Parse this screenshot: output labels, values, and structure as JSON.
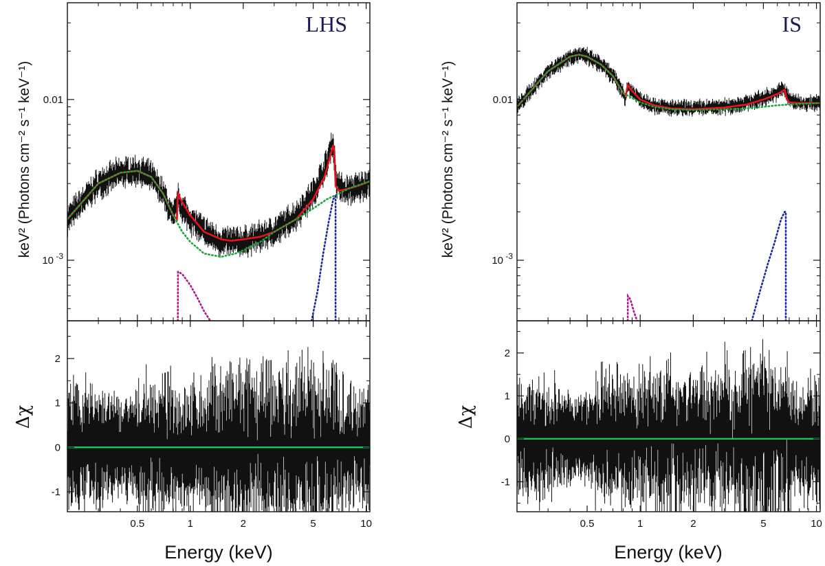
{
  "chart_data": [
    {
      "type": "line",
      "panel_label": "LHS",
      "xlabel": "Energy (keV)",
      "ylabel": "keV² (Photons cm⁻² s⁻¹ keV⁻¹)",
      "residual_label": "Δχ",
      "xscale": "log",
      "yscale": "log",
      "xlim": [
        0.2,
        10.5
      ],
      "ylim": [
        0.00042,
        0.04
      ],
      "residual_ylim": [
        -1.45,
        2.85
      ],
      "x_ticks": [
        {
          "v": 0.5,
          "label": "0.5"
        },
        {
          "v": 1,
          "label": "1"
        },
        {
          "v": 2,
          "label": "2"
        },
        {
          "v": 5,
          "label": "5"
        },
        {
          "v": 10,
          "label": "10"
        }
      ],
      "y_ticks": [
        {
          "v": 0.01,
          "base": "0.01",
          "sup": ""
        },
        {
          "v": 0.001,
          "base": "10",
          "sup": "-3"
        }
      ],
      "residual_ticks": [
        {
          "v": 2,
          "label": "2"
        },
        {
          "v": 1,
          "label": "1"
        },
        {
          "v": 0,
          "label": "0"
        },
        {
          "v": -1,
          "label": "-1"
        }
      ],
      "data_points": {
        "x": [
          0.2,
          0.3,
          0.4,
          0.5,
          0.6,
          0.7,
          0.8,
          0.85,
          0.9,
          1.0,
          1.2,
          1.5,
          2.0,
          2.5,
          3.0,
          4.0,
          5.0,
          6.0,
          6.4,
          6.6,
          6.8,
          7.5,
          9.0,
          10.5
        ],
        "y": [
          0.0018,
          0.003,
          0.0035,
          0.0036,
          0.0033,
          0.0026,
          0.0018,
          0.0024,
          0.0021,
          0.0018,
          0.0015,
          0.0013,
          0.0013,
          0.0014,
          0.0015,
          0.0019,
          0.0026,
          0.004,
          0.0055,
          0.0045,
          0.003,
          0.0027,
          0.0028,
          0.0031
        ],
        "scatter": 0.15
      },
      "series": [
        {
          "name": "",
          "style": "solid",
          "color": "#e8131c",
          "x": [
            0.2,
            0.3,
            0.4,
            0.5,
            0.6,
            0.7,
            0.8,
            0.84,
            0.85,
            0.9,
            1.0,
            1.2,
            1.5,
            1.7,
            2.0,
            2.5,
            3.0,
            4.0,
            5.0,
            5.8,
            6.3,
            6.5,
            6.6,
            6.7,
            7.0,
            8.0,
            9.0,
            10.5
          ],
          "y": [
            0.0018,
            0.003,
            0.0035,
            0.0036,
            0.0033,
            0.0026,
            0.0019,
            0.0018,
            0.0026,
            0.0023,
            0.0019,
            0.0015,
            0.00135,
            0.00132,
            0.00135,
            0.0014,
            0.0015,
            0.0018,
            0.0024,
            0.0033,
            0.0046,
            0.0052,
            0.0048,
            0.0029,
            0.0027,
            0.0028,
            0.0029,
            0.0031
          ]
        },
        {
          "name": "",
          "style": "dotted",
          "color": "#1aa83c",
          "x": [
            0.2,
            0.3,
            0.4,
            0.5,
            0.6,
            0.7,
            0.8,
            0.9,
            1.0,
            1.2,
            1.5,
            1.8,
            2.0,
            2.5,
            3.0,
            4.0,
            5.0,
            6.0,
            7.0,
            8.0,
            10.5
          ],
          "y": [
            0.0018,
            0.003,
            0.0035,
            0.0036,
            0.0033,
            0.0026,
            0.0019,
            0.0015,
            0.0013,
            0.0011,
            0.00105,
            0.0011,
            0.00115,
            0.0013,
            0.0015,
            0.0018,
            0.0021,
            0.0024,
            0.0026,
            0.0028,
            0.0031
          ]
        },
        {
          "name": "",
          "style": "dotted",
          "color": "#b0188e",
          "x": [
            0.85,
            0.851,
            0.9,
            1.0,
            1.1,
            1.2,
            1.3
          ],
          "y": [
            0.00042,
            0.00085,
            0.00082,
            0.0007,
            0.00058,
            0.00048,
            0.00042
          ]
        },
        {
          "name": "",
          "style": "dotted",
          "color": "#1a2a9c",
          "x": [
            4.9,
            5.3,
            5.7,
            6.1,
            6.5,
            6.7,
            6.701
          ],
          "y": [
            0.00042,
            0.00065,
            0.0011,
            0.0017,
            0.0024,
            0.0025,
            0.00042
          ]
        }
      ],
      "residuals": {
        "model_line": 0,
        "bands": [
          {
            "x": [
              0.2,
              0.33
            ],
            "amp": 1.0
          },
          {
            "x": [
              0.33,
              0.5
            ],
            "amp": 0.7
          },
          {
            "x": [
              0.5,
              0.8
            ],
            "amp": 1.1
          },
          {
            "x": [
              0.8,
              1.3
            ],
            "amp": 1.0
          },
          {
            "x": [
              1.3,
              3.0
            ],
            "amp": 1.4
          },
          {
            "x": [
              3.0,
              7.5
            ],
            "amp": 1.5
          },
          {
            "x": [
              7.5,
              10.5
            ],
            "amp": 1.0
          }
        ]
      }
    },
    {
      "type": "line",
      "panel_label": "IS",
      "xlabel": "Energy (keV)",
      "ylabel": "keV² (Photons cm⁻² s⁻¹ keV⁻¹)",
      "residual_label": "Δχ",
      "xscale": "log",
      "yscale": "log",
      "xlim": [
        0.2,
        10.5
      ],
      "ylim": [
        0.00042,
        0.04
      ],
      "residual_ylim": [
        -1.7,
        2.75
      ],
      "x_ticks": [
        {
          "v": 0.5,
          "label": "0.5"
        },
        {
          "v": 1,
          "label": "1"
        },
        {
          "v": 2,
          "label": "2"
        },
        {
          "v": 5,
          "label": "5"
        },
        {
          "v": 10,
          "label": "10"
        }
      ],
      "y_ticks": [
        {
          "v": 0.01,
          "base": "0.01",
          "sup": ""
        },
        {
          "v": 0.001,
          "base": "10",
          "sup": "-3"
        }
      ],
      "residual_ticks": [
        {
          "v": 2,
          "label": "2"
        },
        {
          "v": 1,
          "label": "1"
        },
        {
          "v": 0,
          "label": "0"
        },
        {
          "v": -1,
          "label": "-1"
        }
      ],
      "data_points": {
        "x": [
          0.2,
          0.3,
          0.4,
          0.45,
          0.5,
          0.6,
          0.7,
          0.8,
          0.82,
          0.85,
          0.9,
          1.0,
          1.2,
          1.5,
          2.0,
          3.0,
          4.0,
          5.0,
          6.0,
          6.5,
          7.0,
          8.0,
          10.5
        ],
        "y": [
          0.009,
          0.015,
          0.0185,
          0.019,
          0.0185,
          0.0165,
          0.014,
          0.0112,
          0.01,
          0.012,
          0.0112,
          0.01,
          0.0092,
          0.0088,
          0.0088,
          0.009,
          0.0095,
          0.0102,
          0.011,
          0.0118,
          0.01,
          0.0095,
          0.0095
        ],
        "scatter": 0.08
      },
      "series": [
        {
          "name": "",
          "style": "solid",
          "color": "#e8131c",
          "x": [
            0.2,
            0.3,
            0.4,
            0.45,
            0.5,
            0.6,
            0.7,
            0.8,
            0.83,
            0.85,
            0.9,
            1.0,
            1.2,
            1.5,
            2.0,
            3.0,
            4.0,
            5.0,
            6.0,
            6.6,
            6.8,
            7.0,
            8.0,
            10.5
          ],
          "y": [
            0.009,
            0.015,
            0.0185,
            0.019,
            0.0185,
            0.0165,
            0.014,
            0.011,
            0.0106,
            0.0123,
            0.0113,
            0.01,
            0.0092,
            0.0088,
            0.0087,
            0.0089,
            0.0093,
            0.01,
            0.0108,
            0.0115,
            0.01,
            0.0096,
            0.0095,
            0.0095
          ]
        },
        {
          "name": "",
          "style": "dotted",
          "color": "#1aa83c",
          "x": [
            0.2,
            0.3,
            0.4,
            0.45,
            0.5,
            0.6,
            0.7,
            0.8,
            0.9,
            1.0,
            1.2,
            1.5,
            2.0,
            3.0,
            4.0,
            5.0,
            6.0,
            7.0,
            8.0,
            10.5
          ],
          "y": [
            0.009,
            0.015,
            0.0185,
            0.019,
            0.0185,
            0.0165,
            0.014,
            0.011,
            0.0102,
            0.0096,
            0.009,
            0.0087,
            0.0086,
            0.0087,
            0.0088,
            0.009,
            0.0092,
            0.0093,
            0.0094,
            0.0095
          ]
        },
        {
          "name": "",
          "style": "dotted",
          "color": "#b0188e",
          "x": [
            0.85,
            0.851,
            0.88,
            0.92,
            0.96
          ],
          "y": [
            0.00042,
            0.0006,
            0.00057,
            0.00048,
            0.00042
          ]
        },
        {
          "name": "",
          "style": "dotted",
          "color": "#1a2a9c",
          "x": [
            4.3,
            4.8,
            5.3,
            5.8,
            6.3,
            6.6,
            6.7,
            6.701
          ],
          "y": [
            0.00042,
            0.00065,
            0.00095,
            0.0013,
            0.0018,
            0.002,
            0.002,
            0.00042
          ]
        }
      ],
      "residuals": {
        "model_line": 0,
        "bands": [
          {
            "x": [
              0.2,
              0.33
            ],
            "amp": 1.0
          },
          {
            "x": [
              0.33,
              0.55
            ],
            "amp": 0.6
          },
          {
            "x": [
              0.55,
              1.0
            ],
            "amp": 1.1
          },
          {
            "x": [
              1.0,
              3.0
            ],
            "amp": 1.3
          },
          {
            "x": [
              3.0,
              7.0
            ],
            "amp": 1.6
          },
          {
            "x": [
              7.0,
              10.5
            ],
            "amp": 1.0
          }
        ]
      }
    }
  ]
}
